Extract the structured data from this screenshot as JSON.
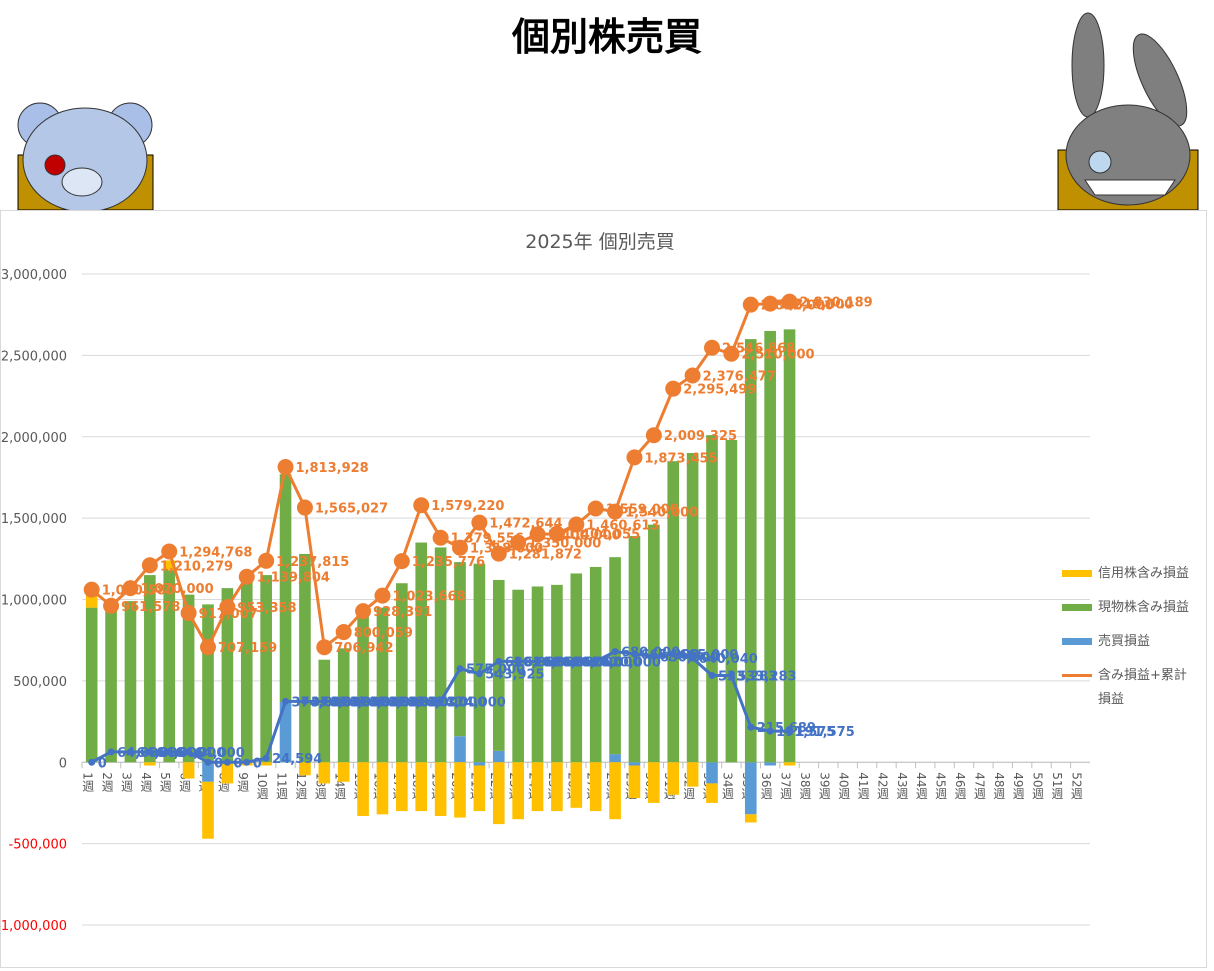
{
  "page_title": "個別株売買",
  "chart_data": {
    "type": "bar",
    "title": "2025年 個別売買",
    "categories": [
      "1週",
      "2週",
      "3週",
      "4週",
      "5週",
      "6週",
      "7週",
      "8週",
      "9週",
      "10週",
      "11週",
      "12週",
      "13週",
      "14週",
      "15週",
      "16週",
      "17週",
      "18週",
      "19週",
      "20週",
      "21週",
      "22週",
      "23週",
      "24週",
      "25週",
      "26週",
      "27週",
      "28週",
      "29週",
      "30週",
      "31週",
      "32週",
      "33週",
      "34週",
      "35週",
      "36週",
      "37週",
      "38週",
      "39週",
      "40週",
      "41週",
      "42週",
      "43週",
      "44週",
      "45週",
      "46週",
      "47週",
      "48週",
      "49週",
      "50週",
      "51週",
      "52週"
    ],
    "ylim": [
      -1000000,
      3000000
    ],
    "yticks": [
      {
        "value": -1000000,
        "label": "-1,000,000"
      },
      {
        "value": -500000,
        "label": "-500,000"
      },
      {
        "value": 0,
        "label": "0"
      },
      {
        "value": 500000,
        "label": "500,000"
      },
      {
        "value": 1000000,
        "label": "1,000,000"
      },
      {
        "value": 1500000,
        "label": "1,500,000"
      },
      {
        "value": 2000000,
        "label": "2,000,000"
      },
      {
        "value": 2500000,
        "label": "2,500,000"
      },
      {
        "value": 3000000,
        "label": "3,000,000"
      }
    ],
    "grid": true,
    "negative_tick_color": "#ff0000",
    "series": [
      {
        "name": "信用株含み損益",
        "color": "#ffc000",
        "kind": "bar",
        "values": [
          100000,
          0,
          0,
          -20000,
          60000,
          -100000,
          -350000,
          -130000,
          -20000,
          -20000,
          0,
          -80000,
          -130000,
          -120000,
          -330000,
          -320000,
          -300000,
          -300000,
          -330000,
          -340000,
          -280000,
          -380000,
          -350000,
          -300000,
          -300000,
          -280000,
          -300000,
          -350000,
          -200000,
          -250000,
          -200000,
          -150000,
          -120000,
          0,
          -50000,
          0,
          -20000,
          null,
          null,
          null,
          null,
          null,
          null,
          null,
          null,
          null,
          null,
          null,
          null,
          null,
          null,
          null
        ]
      },
      {
        "name": "現物株含み損益",
        "color": "#70ad47",
        "kind": "bar",
        "values": [
          950000,
          940000,
          990000,
          1150000,
          1180000,
          1030000,
          970000,
          1070000,
          1140000,
          1150000,
          1400000,
          1280000,
          630000,
          700000,
          900000,
          950000,
          1100000,
          1350000,
          1320000,
          1070000,
          1220000,
          1050000,
          1060000,
          1080000,
          1090000,
          1160000,
          1200000,
          1210000,
          1390000,
          1460000,
          1850000,
          1900000,
          2010000,
          1980000,
          2600000,
          2650000,
          2660000,
          null,
          null,
          null,
          null,
          null,
          null,
          null,
          null,
          null,
          null,
          null,
          null,
          null,
          null,
          null
        ]
      },
      {
        "name": "売買損益",
        "color": "#5b9bd5",
        "kind": "bar",
        "values": [
          0,
          0,
          0,
          0,
          0,
          0,
          -120000,
          0,
          0,
          0,
          370000,
          0,
          0,
          0,
          0,
          0,
          0,
          0,
          0,
          160000,
          -20000,
          70000,
          0,
          0,
          0,
          0,
          0,
          50000,
          -20000,
          0,
          0,
          0,
          -130000,
          0,
          -320000,
          -20000,
          0,
          null,
          null,
          null,
          null,
          null,
          null,
          null,
          null,
          null,
          null,
          null,
          null,
          null,
          null,
          null
        ]
      },
      {
        "name": "含み損益+累計損益",
        "color": "#ed7d31",
        "kind": "line",
        "values": [
          1060580,
          961578,
          1070000,
          1210279,
          1294768,
          917007,
          707159,
          953358,
          1139804,
          1237815,
          1813928,
          1565027,
          706942,
          800059,
          928391,
          1023668,
          1235776,
          1579220,
          1379556,
          1318000,
          1472644,
          1281872,
          1350000,
          1400000,
          1404055,
          1460613,
          1559000,
          1540000,
          1873455,
          2009325,
          2295499,
          2376477,
          2546868,
          2510000,
          2812000,
          2818000,
          2830189,
          null,
          null,
          null,
          null,
          null,
          null,
          null,
          null,
          null,
          null,
          null,
          null,
          null,
          null,
          null
        ],
        "value_labels": [
          "1,060,580",
          "961,578",
          "1,070,000",
          "1,210,279",
          "1,294,768",
          "917,007",
          "707,159",
          "953,358",
          "1,139,804",
          "1,237,815",
          "1,813,928",
          "1,565,027",
          "706,942",
          "800,059",
          "928,391",
          "1,023,668",
          "1,235,776",
          "1,579,220",
          "1,379,556",
          "1,318,000",
          "1,472,644",
          "1,281,872",
          "1,350,000",
          "1,400,000",
          "1,404,055",
          "1,460,613",
          "1,559,000",
          "1,540,000",
          "1,873,455",
          "2,009,325",
          "2,295,499",
          "2,376,477",
          "2,546,868",
          "2,510,000",
          "2,812,000",
          "2,818,000",
          "2,830,189",
          null,
          null,
          null,
          null,
          null,
          null,
          null,
          null,
          null,
          null,
          null,
          null,
          null,
          null,
          null
        ]
      },
      {
        "color": "#4472c4",
        "kind": "line",
        "values": [
          0,
          64000,
          64000,
          64000,
          64000,
          64000,
          0,
          0,
          0,
          24594,
          374000,
          374000,
          374000,
          374000,
          374000,
          374000,
          374000,
          374000,
          374000,
          575000,
          543925,
          620000,
          620000,
          620000,
          620000,
          620000,
          620000,
          680000,
          665000,
          650000,
          665000,
          640040,
          533283,
          533283,
          215689,
          191575,
          191575,
          null,
          null,
          null,
          null,
          null,
          null,
          null,
          null,
          null,
          null,
          null,
          null,
          null,
          null,
          null
        ],
        "value_labels": [
          "0",
          "64,000",
          "64,000",
          "64,000",
          "64,000",
          "64,000",
          "0",
          "0",
          "0",
          "24,594",
          "374,000",
          "374,000",
          "374,000",
          "374,000",
          "374,000",
          "374,000",
          "374,000",
          "374,000",
          "374,000",
          "575,000",
          "543,925",
          "620,000",
          "620,000",
          "620,000",
          "620,000",
          "620,000",
          "620,000",
          "680,000",
          "665,000",
          "650,000",
          "665,000",
          "640,040",
          "533,283",
          "533,283",
          "215,689",
          "191,575",
          "191,575",
          null,
          null,
          null,
          null,
          null,
          null,
          null,
          null,
          null,
          null,
          null,
          null,
          null,
          null,
          null
        ]
      }
    ]
  }
}
